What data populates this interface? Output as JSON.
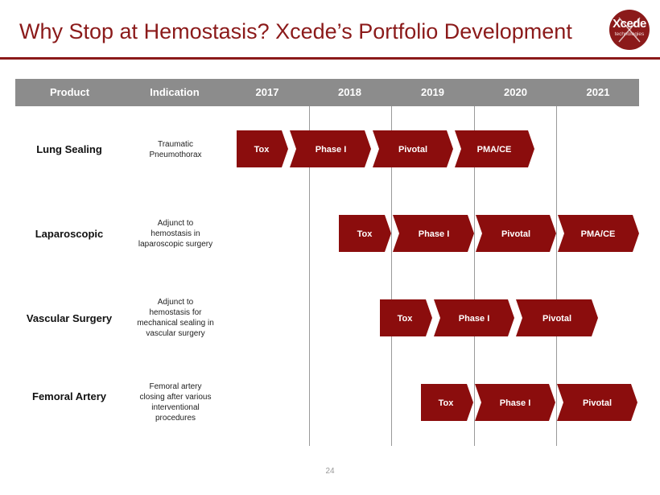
{
  "title": "Why Stop at Hemostasis? Xcede’s Portfolio Development",
  "logo": {
    "word": "Xcede",
    "sub": "technologies"
  },
  "header": [
    "Product",
    "Indication",
    "2017",
    "2018",
    "2019",
    "2020",
    "2021"
  ],
  "colors": {
    "accent": "#8b1a1a",
    "header_bg": "#8c8c8c"
  },
  "rows": [
    {
      "product": "Lung Sealing",
      "indication": [
        "Traumatic",
        "Pneumothorax"
      ],
      "phases": [
        "Tox",
        "Phase I",
        "Pivotal",
        "PMA/CE"
      ]
    },
    {
      "product": "Laparoscopic",
      "indication": [
        "Adjunct to",
        "hemostasis in",
        "laparoscopic surgery"
      ],
      "phases": [
        "Tox",
        "Phase I",
        "Pivotal",
        "PMA/CE"
      ]
    },
    {
      "product": "Vascular Surgery",
      "indication": [
        "Adjunct to",
        "hemostasis for",
        "mechanical sealing in",
        "vascular surgery"
      ],
      "phases": [
        "Tox",
        "Phase I",
        "Pivotal"
      ]
    },
    {
      "product": "Femoral Artery",
      "indication": [
        "Femoral artery",
        "closing after various",
        "interventional",
        "procedures"
      ],
      "phases": [
        "Tox",
        "Phase I",
        "Pivotal"
      ]
    }
  ],
  "page_number": "24"
}
